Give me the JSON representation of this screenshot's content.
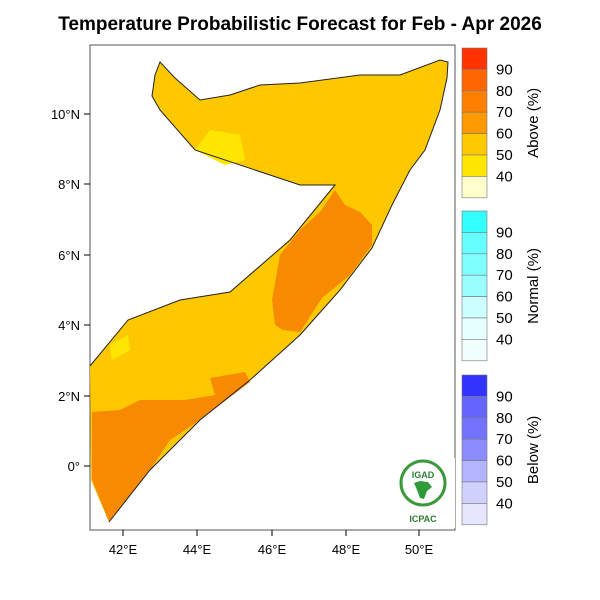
{
  "title": "Temperature Probabilistic Forecast for Feb - Apr 2026",
  "map": {
    "lon_ticks": [
      "42°E",
      "44°E",
      "46°E",
      "48°E",
      "50°E"
    ],
    "lat_ticks": [
      "10°N",
      "8°N",
      "6°N",
      "4°N",
      "2°N",
      "0°"
    ],
    "region": "Somalia"
  },
  "legend": {
    "groups": [
      {
        "title": "Above (%)",
        "labels": [
          "90",
          "80",
          "70",
          "60",
          "50",
          "40"
        ],
        "colors": [
          "#ff3300",
          "#ff6600",
          "#ff8000",
          "#ff9900",
          "#ffc800",
          "#ffe600",
          "#ffffcc"
        ]
      },
      {
        "title": "Normal (%)",
        "labels": [
          "90",
          "80",
          "70",
          "60",
          "50",
          "40"
        ],
        "colors": [
          "#33ffff",
          "#66ffff",
          "#80ffff",
          "#99ffff",
          "#ccffff",
          "#e6ffff",
          "#f2ffff"
        ]
      },
      {
        "title": "Below (%)",
        "labels": [
          "90",
          "80",
          "70",
          "60",
          "50",
          "40"
        ],
        "colors": [
          "#3333ff",
          "#6666ff",
          "#7373ff",
          "#8c8cff",
          "#b3b3ff",
          "#d1d1ff",
          "#e6e6ff"
        ]
      }
    ]
  },
  "logo": {
    "top_text": "IGAD",
    "bottom_text": "ICPAC"
  }
}
